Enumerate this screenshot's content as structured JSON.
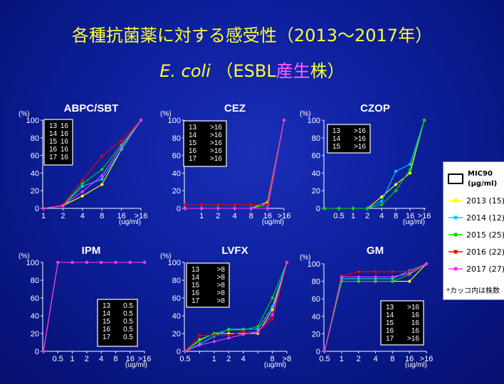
{
  "slide": {
    "title_line1": "各種抗菌薬に対する感受性（2013〜2017年）",
    "title_ecoli": "E. coli",
    "title_paren_open": "（ESBL",
    "title_san": "産",
    "title_sei": "生",
    "title_rest": "株）"
  },
  "colors": {
    "2013": "#ffff00",
    "2014": "#00ccff",
    "2015": "#00dd00",
    "2016": "#ee0000",
    "2017": "#ff33ff"
  },
  "legend": {
    "header": [
      "MIC90",
      "(μg/ml)"
    ],
    "items": [
      {
        "year": "2013",
        "label": "2013 (15)"
      },
      {
        "year": "2014",
        "label": "2014 (12)"
      },
      {
        "year": "2015",
        "label": "2015 (25)"
      },
      {
        "year": "2016",
        "label": "2016 (22)"
      },
      {
        "year": "2017",
        "label": "2017 (27)"
      }
    ],
    "note": "*カッコ内は株数"
  },
  "chart_data": [
    {
      "type": "line",
      "title": "ABPC/SBT",
      "ylabel": "(%)",
      "xunit": "(ug/ml)",
      "x": [
        "1",
        "2",
        "4",
        "8",
        "16",
        ">16"
      ],
      "ylim": [
        0,
        100
      ],
      "yticks": [
        0,
        20,
        40,
        60,
        80,
        100
      ],
      "series": [
        {
          "name": "2013",
          "values": [
            0,
            3,
            14,
            27,
            67,
            100
          ]
        },
        {
          "name": "2014",
          "values": [
            0,
            3,
            25,
            33,
            67,
            100
          ]
        },
        {
          "name": "2015",
          "values": [
            0,
            3,
            28,
            44,
            72,
            100
          ]
        },
        {
          "name": "2016",
          "values": [
            0,
            4,
            32,
            59,
            77,
            100
          ]
        },
        {
          "name": "2017",
          "values": [
            0,
            3,
            19,
            37,
            70,
            100
          ]
        }
      ],
      "mic90": [
        [
          "13",
          "16"
        ],
        [
          "14",
          "16"
        ],
        [
          "15",
          "16"
        ],
        [
          "16",
          "16"
        ],
        [
          "17",
          "16"
        ]
      ]
    },
    {
      "type": "line",
      "title": "CEZ",
      "ylabel": "(%)",
      "xunit": "(ug/ml)",
      "x": [
        "",
        "1",
        "2",
        "4",
        "8",
        "16",
        ">16"
      ],
      "ylim": [
        0,
        100
      ],
      "yticks": [
        0,
        20,
        40,
        60,
        80,
        100
      ],
      "series": [
        {
          "name": "2013",
          "values": [
            0,
            0,
            0,
            0,
            0,
            7,
            100
          ]
        },
        {
          "name": "2014",
          "values": [
            0,
            0,
            0,
            0,
            0,
            0,
            100
          ]
        },
        {
          "name": "2015",
          "values": [
            0,
            0,
            0,
            0,
            0,
            4,
            100
          ]
        },
        {
          "name": "2016",
          "values": [
            4,
            4,
            4,
            4,
            4,
            4,
            100
          ]
        },
        {
          "name": "2017",
          "values": [
            0,
            0,
            0,
            0,
            0,
            0,
            100
          ]
        }
      ],
      "mic90": [
        [
          "13",
          ">16"
        ],
        [
          "14",
          ">16"
        ],
        [
          "15",
          ">16"
        ],
        [
          "16",
          ">16"
        ],
        [
          "17",
          ">16"
        ]
      ]
    },
    {
      "type": "line",
      "title": "CZOP",
      "ylabel": "(%)",
      "xunit": "(ug/ml)",
      "x": [
        "",
        "0.5",
        "1",
        "2",
        "4",
        "8",
        "16",
        ">16"
      ],
      "ylim": [
        0,
        100
      ],
      "yticks": [
        0,
        20,
        40,
        60,
        80,
        100
      ],
      "series": [
        {
          "name": "2013",
          "values": [
            0,
            0,
            0,
            0,
            13,
            27,
            40,
            100
          ]
        },
        {
          "name": "2014",
          "values": [
            0,
            0,
            0,
            0,
            8,
            42,
            50,
            100
          ]
        },
        {
          "name": "2015",
          "values": [
            0,
            0,
            0,
            0,
            4,
            20,
            44,
            100
          ]
        }
      ],
      "mic90": [
        [
          "13",
          ">16"
        ],
        [
          "14",
          ">16"
        ],
        [
          "15",
          ">16"
        ]
      ]
    },
    {
      "type": "line",
      "title": "IPM",
      "ylabel": "(%)",
      "xunit": "(ug/ml)",
      "x": [
        "",
        "0.5",
        "1",
        "2",
        "4",
        "8",
        "16",
        ">16"
      ],
      "ylim": [
        0,
        100
      ],
      "yticks": [
        0,
        20,
        40,
        60,
        80,
        100
      ],
      "series": [
        {
          "name": "2013",
          "values": [
            0,
            100,
            100,
            100,
            100,
            100,
            100,
            100
          ]
        },
        {
          "name": "2014",
          "values": [
            0,
            100,
            100,
            100,
            100,
            100,
            100,
            100
          ]
        },
        {
          "name": "2015",
          "values": [
            0,
            100,
            100,
            100,
            100,
            100,
            100,
            100
          ]
        },
        {
          "name": "2016",
          "values": [
            0,
            100,
            100,
            100,
            100,
            100,
            100,
            100
          ]
        },
        {
          "name": "2017",
          "values": [
            0,
            100,
            100,
            100,
            100,
            100,
            100,
            100
          ]
        }
      ],
      "mic90": [
        [
          "13",
          "0.5"
        ],
        [
          "14",
          "0.5"
        ],
        [
          "15",
          "0.5"
        ],
        [
          "16",
          "0.5"
        ],
        [
          "17",
          "0.5"
        ]
      ]
    },
    {
      "type": "line",
      "title": "LVFX",
      "ylabel": "(%)",
      "xunit": "(ug/ml)",
      "x": [
        "0.5",
        "",
        "1",
        "2",
        "4",
        "",
        "8",
        ">8"
      ],
      "ylim": [
        0,
        100
      ],
      "yticks": [
        0,
        20,
        40,
        60,
        80,
        100
      ],
      "series": [
        {
          "name": "2013",
          "values": [
            0,
            13,
            20,
            20,
            20,
            20,
            47,
            100
          ]
        },
        {
          "name": "2014",
          "values": [
            0,
            8,
            17,
            25,
            25,
            25,
            50,
            100
          ]
        },
        {
          "name": "2015",
          "values": [
            0,
            12,
            20,
            24,
            24,
            28,
            60,
            100
          ]
        },
        {
          "name": "2016",
          "values": [
            0,
            18,
            18,
            18,
            22,
            22,
            36,
            100
          ]
        },
        {
          "name": "2017",
          "values": [
            0,
            7,
            11,
            15,
            19,
            22,
            41,
            100
          ]
        }
      ],
      "mic90": [
        [
          "13",
          ">8"
        ],
        [
          "14",
          ">8"
        ],
        [
          "15",
          ">8"
        ],
        [
          "16",
          ">8"
        ],
        [
          "17",
          ">8"
        ]
      ]
    },
    {
      "type": "line",
      "title": "GM",
      "ylabel": "(%)",
      "xunit": "(ug/ml)",
      "x": [
        "0.5",
        "1",
        "2",
        "4",
        "8",
        "16",
        ">16"
      ],
      "ylim": [
        0,
        100
      ],
      "yticks": [
        0,
        20,
        40,
        60,
        80,
        100
      ],
      "series": [
        {
          "name": "2013",
          "values": [
            0,
            80,
            80,
            80,
            80,
            80,
            100
          ]
        },
        {
          "name": "2014",
          "values": [
            0,
            83,
            83,
            83,
            83,
            92,
            100
          ]
        },
        {
          "name": "2015",
          "values": [
            0,
            80,
            80,
            80,
            80,
            88,
            100
          ]
        },
        {
          "name": "2016",
          "values": [
            0,
            86,
            91,
            91,
            91,
            91,
            100
          ]
        },
        {
          "name": "2017",
          "values": [
            0,
            85,
            85,
            85,
            85,
            89,
            100
          ]
        }
      ],
      "mic90": [
        [
          "13",
          ">16"
        ],
        [
          "14",
          "16"
        ],
        [
          "15",
          "16"
        ],
        [
          "16",
          "16"
        ],
        [
          "17",
          ">16"
        ]
      ]
    }
  ]
}
